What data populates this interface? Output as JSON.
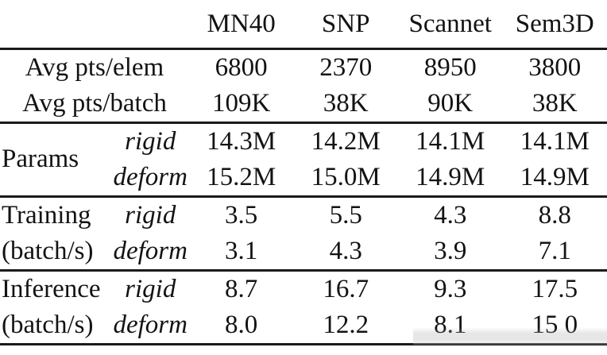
{
  "colors": {
    "text": "#131313",
    "background": "#ffffff",
    "rule": "#1a1a1a"
  },
  "table": {
    "columns": [
      "MN40",
      "SNP",
      "Scannet",
      "Sem3D"
    ],
    "sections": [
      {
        "rows": [
          {
            "label": "Avg pts/elem",
            "values": [
              "6800",
              "2370",
              "8950",
              "3800"
            ]
          },
          {
            "label": "Avg pts/batch",
            "values": [
              "109K",
              "38K",
              "90K",
              "38K"
            ]
          }
        ]
      },
      {
        "group": "Params",
        "rows": [
          {
            "variant": "rigid",
            "values": [
              "14.3M",
              "14.2M",
              "14.1M",
              "14.1M"
            ]
          },
          {
            "variant": "deform",
            "values": [
              "15.2M",
              "15.0M",
              "14.9M",
              "14.9M"
            ]
          }
        ]
      },
      {
        "group_line1": "Training",
        "group_line2": "(batch/s)",
        "rows": [
          {
            "variant": "rigid",
            "values": [
              "3.5",
              "5.5",
              "4.3",
              "8.8"
            ]
          },
          {
            "variant": "deform",
            "values": [
              "3.1",
              "4.3",
              "3.9",
              "7.1"
            ]
          }
        ]
      },
      {
        "group_line1": "Inference",
        "group_line2": "(batch/s)",
        "rows": [
          {
            "variant": "rigid",
            "values": [
              "8.7",
              "16.7",
              "9.3",
              "17.5"
            ]
          },
          {
            "variant": "deform",
            "values": [
              "8.0",
              "12.2",
              "8.1",
              "15 0"
            ]
          }
        ]
      }
    ]
  }
}
